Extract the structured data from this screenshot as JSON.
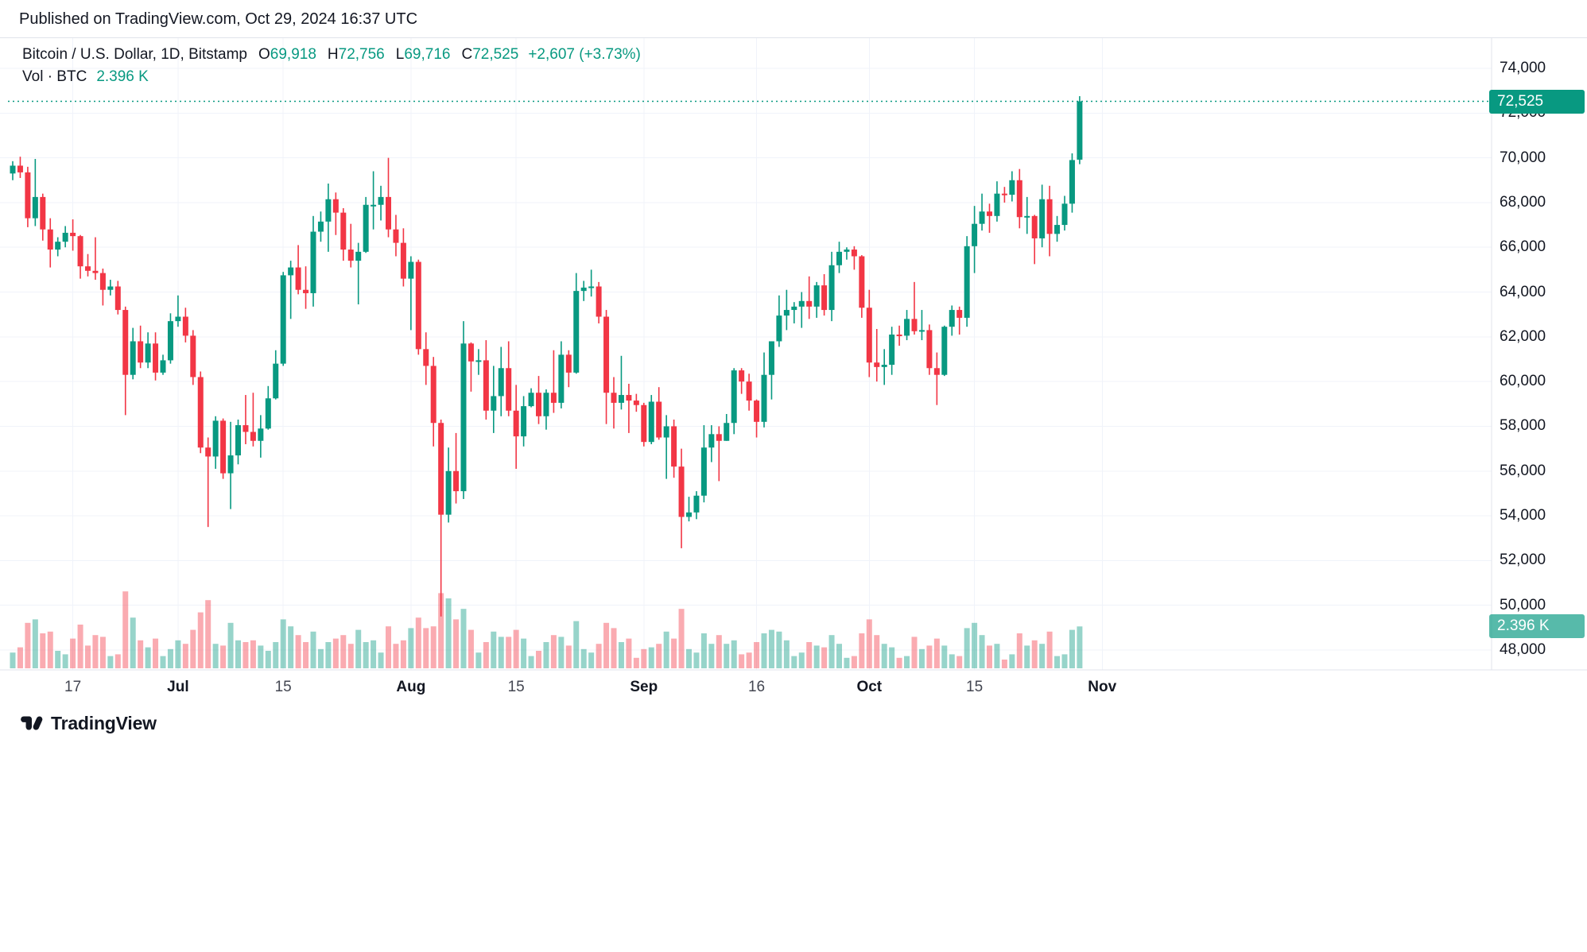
{
  "header": {
    "published_line": "Published on TradingView.com, Oct 29, 2024 16:37 UTC"
  },
  "legend": {
    "symbol": "Bitcoin / U.S. Dollar, 1D, Bitstamp",
    "o_label": "O",
    "o_value": "69,918",
    "h_label": "H",
    "h_value": "72,756",
    "l_label": "L",
    "l_value": "69,716",
    "c_label": "C",
    "c_value": "72,525",
    "change": "+2,607 (+3.73%)",
    "volume_label": "Vol · BTC",
    "volume_value": "2.396 K"
  },
  "price_axis": {
    "last_price_badge": "72,525",
    "volume_badge": "2.396 K"
  },
  "footer": {
    "brand": "TradingView"
  },
  "colors": {
    "up": "#089981",
    "down": "#F23645",
    "vol_up": "rgba(8,153,129,0.42)",
    "vol_down": "rgba(242,54,69,0.42)",
    "accent": "#089981",
    "text": "#131722",
    "grid": "#f0f3fa",
    "axis_line": "#e0e3eb"
  },
  "chart_data": {
    "type": "candlestick",
    "title": "Bitcoin / U.S. Dollar",
    "interval": "1D",
    "exchange": "Bitstamp",
    "volume_unit": "K BTC",
    "current_price": 72525,
    "last": {
      "open": 69918,
      "high": 72756,
      "low": 69716,
      "close": 72525,
      "change_abs": 2607,
      "change_pct": 3.73,
      "volume_k_btc": 2.396
    },
    "y_ticks": [
      {
        "value": 74000,
        "label": "74,000"
      },
      {
        "value": 72000,
        "label": "72,000"
      },
      {
        "value": 70000,
        "label": "70,000"
      },
      {
        "value": 68000,
        "label": "68,000"
      },
      {
        "value": 66000,
        "label": "66,000"
      },
      {
        "value": 64000,
        "label": "64,000"
      },
      {
        "value": 62000,
        "label": "62,000"
      },
      {
        "value": 60000,
        "label": "60,000"
      },
      {
        "value": 58000,
        "label": "58,000"
      },
      {
        "value": 56000,
        "label": "56,000"
      },
      {
        "value": 54000,
        "label": "54,000"
      },
      {
        "value": 52000,
        "label": "52,000"
      },
      {
        "value": 50000,
        "label": "50,000"
      },
      {
        "value": 48000,
        "label": "48,000"
      }
    ],
    "x_ticks": [
      {
        "label": "17",
        "index": 8,
        "bold": false
      },
      {
        "label": "Jul",
        "index": 22,
        "bold": true
      },
      {
        "label": "15",
        "index": 36,
        "bold": false
      },
      {
        "label": "Aug",
        "index": 53,
        "bold": true
      },
      {
        "label": "15",
        "index": 67,
        "bold": false
      },
      {
        "label": "Sep",
        "index": 84,
        "bold": true
      },
      {
        "label": "16",
        "index": 99,
        "bold": false
      },
      {
        "label": "Oct",
        "index": 114,
        "bold": true
      },
      {
        "label": "15",
        "index": 128,
        "bold": false
      },
      {
        "label": "Nov",
        "index": 145,
        "bold": true
      }
    ],
    "candle_fields": [
      "date",
      "open",
      "high",
      "low",
      "close",
      "volume_k_btc"
    ],
    "candles": [
      [
        "2024-06-09",
        69300,
        69850,
        69000,
        69650,
        0.9
      ],
      [
        "2024-06-10",
        69650,
        70050,
        69100,
        69350,
        1.2
      ],
      [
        "2024-06-11",
        69350,
        69600,
        66900,
        67300,
        2.6
      ],
      [
        "2024-06-12",
        67300,
        69950,
        66950,
        68250,
        2.8
      ],
      [
        "2024-06-13",
        68250,
        68400,
        66300,
        66800,
        2.0
      ],
      [
        "2024-06-14",
        66800,
        67300,
        65100,
        65900,
        2.1
      ],
      [
        "2024-06-15",
        65900,
        66450,
        65600,
        66250,
        1.0
      ],
      [
        "2024-06-16",
        66250,
        66950,
        66000,
        66650,
        0.8
      ],
      [
        "2024-06-17",
        66650,
        67250,
        65850,
        66500,
        1.7
      ],
      [
        "2024-06-18",
        66500,
        66550,
        64600,
        65150,
        2.5
      ],
      [
        "2024-06-19",
        65150,
        65700,
        64700,
        64950,
        1.3
      ],
      [
        "2024-06-20",
        64950,
        66450,
        64550,
        64850,
        1.9
      ],
      [
        "2024-06-21",
        64850,
        65050,
        63400,
        64100,
        1.8
      ],
      [
        "2024-06-22",
        64100,
        64550,
        63850,
        64250,
        0.7
      ],
      [
        "2024-06-23",
        64250,
        64500,
        63000,
        63200,
        0.8
      ],
      [
        "2024-06-24",
        63200,
        63350,
        58500,
        60300,
        4.4
      ],
      [
        "2024-06-25",
        60300,
        62400,
        60100,
        61800,
        2.9
      ],
      [
        "2024-06-26",
        61800,
        62500,
        60600,
        60850,
        1.6
      ],
      [
        "2024-06-27",
        60850,
        62200,
        60600,
        61700,
        1.2
      ],
      [
        "2024-06-28",
        61700,
        62200,
        60050,
        60400,
        1.7
      ],
      [
        "2024-06-29",
        60400,
        61200,
        60300,
        60950,
        0.7
      ],
      [
        "2024-06-30",
        60950,
        63050,
        60800,
        62700,
        1.1
      ],
      [
        "2024-07-01",
        62700,
        63850,
        62450,
        62900,
        1.6
      ],
      [
        "2024-07-02",
        62900,
        63300,
        61750,
        62050,
        1.4
      ],
      [
        "2024-07-03",
        62050,
        62300,
        59850,
        60200,
        2.2
      ],
      [
        "2024-07-04",
        60200,
        60450,
        56800,
        57050,
        3.2
      ],
      [
        "2024-07-05",
        57050,
        57500,
        53500,
        56650,
        3.9
      ],
      [
        "2024-07-06",
        56650,
        58450,
        56100,
        58250,
        1.4
      ],
      [
        "2024-07-07",
        58250,
        58350,
        55650,
        55900,
        1.3
      ],
      [
        "2024-07-08",
        55900,
        58200,
        54300,
        56700,
        2.6
      ],
      [
        "2024-07-09",
        56700,
        58300,
        56300,
        58050,
        1.6
      ],
      [
        "2024-07-10",
        58050,
        59400,
        57200,
        57750,
        1.5
      ],
      [
        "2024-07-11",
        57750,
        59500,
        57100,
        57350,
        1.6
      ],
      [
        "2024-07-12",
        57350,
        58500,
        56600,
        57900,
        1.3
      ],
      [
        "2024-07-13",
        57900,
        59800,
        57850,
        59250,
        1.0
      ],
      [
        "2024-07-14",
        59250,
        61400,
        59200,
        60800,
        1.5
      ],
      [
        "2024-07-15",
        60800,
        64900,
        60700,
        64750,
        2.8
      ],
      [
        "2024-07-16",
        64750,
        65400,
        62800,
        65100,
        2.4
      ],
      [
        "2024-07-17",
        65100,
        66100,
        63900,
        64100,
        1.9
      ],
      [
        "2024-07-18",
        64100,
        65150,
        63250,
        63950,
        1.5
      ],
      [
        "2024-07-19",
        63950,
        67400,
        63350,
        66700,
        2.1
      ],
      [
        "2024-07-20",
        66700,
        67600,
        66250,
        67150,
        1.1
      ],
      [
        "2024-07-21",
        67150,
        68850,
        65800,
        68150,
        1.5
      ],
      [
        "2024-07-22",
        68150,
        68450,
        66550,
        67550,
        1.7
      ],
      [
        "2024-07-23",
        67550,
        67750,
        65400,
        65900,
        1.9
      ],
      [
        "2024-07-24",
        65900,
        67050,
        65100,
        65400,
        1.4
      ],
      [
        "2024-07-25",
        65400,
        66200,
        63450,
        65800,
        2.2
      ],
      [
        "2024-07-26",
        65800,
        68250,
        65750,
        67900,
        1.5
      ],
      [
        "2024-07-27",
        67900,
        69400,
        66800,
        67900,
        1.6
      ],
      [
        "2024-07-28",
        67900,
        68750,
        67200,
        68250,
        0.9
      ],
      [
        "2024-07-29",
        68250,
        70000,
        66450,
        66800,
        2.4
      ],
      [
        "2024-07-30",
        66800,
        67450,
        65600,
        66200,
        1.4
      ],
      [
        "2024-07-31",
        66200,
        66850,
        64250,
        64600,
        1.6
      ],
      [
        "2024-08-01",
        64600,
        65600,
        62300,
        65350,
        2.3
      ],
      [
        "2024-08-02",
        65350,
        65450,
        61200,
        61450,
        2.9
      ],
      [
        "2024-08-03",
        61450,
        62200,
        59850,
        60700,
        2.3
      ],
      [
        "2024-08-04",
        60700,
        61100,
        57100,
        58150,
        2.4
      ],
      [
        "2024-08-05",
        58150,
        58300,
        49500,
        54050,
        4.3
      ],
      [
        "2024-08-06",
        54050,
        57050,
        53700,
        56000,
        4.0
      ],
      [
        "2024-08-07",
        56000,
        57700,
        54550,
        55100,
        2.8
      ],
      [
        "2024-08-08",
        55100,
        62700,
        54750,
        61700,
        3.4
      ],
      [
        "2024-08-09",
        61700,
        61750,
        59550,
        60900,
        2.2
      ],
      [
        "2024-08-10",
        60900,
        61450,
        60300,
        60950,
        0.9
      ],
      [
        "2024-08-11",
        60950,
        61850,
        58300,
        58700,
        1.5
      ],
      [
        "2024-08-12",
        58700,
        60700,
        57700,
        59350,
        2.1
      ],
      [
        "2024-08-13",
        59350,
        61550,
        58450,
        60600,
        1.8
      ],
      [
        "2024-08-14",
        60600,
        61800,
        58450,
        58700,
        1.8
      ],
      [
        "2024-08-15",
        58700,
        59850,
        56100,
        57550,
        2.2
      ],
      [
        "2024-08-16",
        57550,
        59350,
        57100,
        58900,
        1.7
      ],
      [
        "2024-08-17",
        58900,
        59700,
        58850,
        59500,
        0.7
      ],
      [
        "2024-08-18",
        59500,
        60250,
        58100,
        58450,
        1.0
      ],
      [
        "2024-08-19",
        58450,
        59650,
        57850,
        59500,
        1.5
      ],
      [
        "2024-08-20",
        59500,
        61400,
        58600,
        59050,
        1.9
      ],
      [
        "2024-08-21",
        59050,
        61800,
        58800,
        61200,
        1.8
      ],
      [
        "2024-08-22",
        61200,
        61400,
        59750,
        60400,
        1.3
      ],
      [
        "2024-08-23",
        60400,
        64850,
        60350,
        64050,
        2.7
      ],
      [
        "2024-08-24",
        64050,
        64500,
        63600,
        64200,
        1.1
      ],
      [
        "2024-08-25",
        64200,
        65000,
        63800,
        64250,
        0.9
      ],
      [
        "2024-08-26",
        64250,
        64450,
        62600,
        62900,
        1.4
      ],
      [
        "2024-08-27",
        62900,
        63200,
        58100,
        59500,
        2.6
      ],
      [
        "2024-08-28",
        59500,
        60200,
        57900,
        59050,
        2.3
      ],
      [
        "2024-08-29",
        59050,
        61150,
        58750,
        59400,
        1.5
      ],
      [
        "2024-08-30",
        59400,
        59900,
        57700,
        59150,
        1.7
      ],
      [
        "2024-08-31",
        59150,
        59450,
        58650,
        58950,
        0.6
      ],
      [
        "2024-09-01",
        58950,
        59050,
        57100,
        57300,
        1.1
      ],
      [
        "2024-09-02",
        57300,
        59400,
        57200,
        59100,
        1.2
      ],
      [
        "2024-09-03",
        59100,
        59750,
        57400,
        57500,
        1.4
      ],
      [
        "2024-09-04",
        57500,
        58500,
        55650,
        58000,
        2.1
      ],
      [
        "2024-09-05",
        58000,
        58300,
        55700,
        56200,
        1.7
      ],
      [
        "2024-09-06",
        56200,
        57000,
        52550,
        53950,
        3.4
      ],
      [
        "2024-09-07",
        53950,
        54850,
        53750,
        54150,
        1.1
      ],
      [
        "2024-09-08",
        54150,
        55100,
        53850,
        54900,
        0.9
      ],
      [
        "2024-09-09",
        54900,
        58050,
        54600,
        57050,
        2.0
      ],
      [
        "2024-09-10",
        57050,
        58050,
        56400,
        57650,
        1.4
      ],
      [
        "2024-09-11",
        57650,
        58000,
        55550,
        57350,
        1.9
      ],
      [
        "2024-09-12",
        57350,
        58550,
        57350,
        58150,
        1.4
      ],
      [
        "2024-09-13",
        58150,
        60600,
        57650,
        60500,
        1.6
      ],
      [
        "2024-09-14",
        60500,
        60600,
        59450,
        60000,
        0.8
      ],
      [
        "2024-09-15",
        60000,
        60350,
        58700,
        59150,
        0.9
      ],
      [
        "2024-09-16",
        59150,
        59200,
        57500,
        58200,
        1.5
      ],
      [
        "2024-09-17",
        58200,
        61300,
        57950,
        60300,
        2.0
      ],
      [
        "2024-09-18",
        60300,
        61800,
        59200,
        61800,
        2.2
      ],
      [
        "2024-09-19",
        61800,
        63850,
        61550,
        62950,
        2.1
      ],
      [
        "2024-09-20",
        62950,
        64100,
        62300,
        63200,
        1.6
      ],
      [
        "2024-09-21",
        63200,
        63550,
        62600,
        63350,
        0.7
      ],
      [
        "2024-09-22",
        63350,
        64000,
        62400,
        63600,
        0.9
      ],
      [
        "2024-09-23",
        63600,
        64700,
        62800,
        63350,
        1.5
      ],
      [
        "2024-09-24",
        63350,
        64450,
        62850,
        64300,
        1.3
      ],
      [
        "2024-09-25",
        64300,
        64800,
        62950,
        63200,
        1.2
      ],
      [
        "2024-09-26",
        63200,
        65800,
        62700,
        65200,
        1.9
      ],
      [
        "2024-09-27",
        65200,
        66250,
        64850,
        65800,
        1.4
      ],
      [
        "2024-09-28",
        65800,
        66000,
        65450,
        65900,
        0.6
      ],
      [
        "2024-09-29",
        65900,
        66050,
        65000,
        65600,
        0.7
      ],
      [
        "2024-09-30",
        65600,
        65650,
        62850,
        63300,
        2.0
      ],
      [
        "2024-10-01",
        63300,
        64100,
        60200,
        60850,
        2.8
      ],
      [
        "2024-10-02",
        60850,
        62350,
        60000,
        60650,
        1.9
      ],
      [
        "2024-10-03",
        60650,
        61450,
        59850,
        60750,
        1.4
      ],
      [
        "2024-10-04",
        60750,
        62450,
        60300,
        62100,
        1.2
      ],
      [
        "2024-10-05",
        62100,
        62500,
        61600,
        62050,
        0.6
      ],
      [
        "2024-10-06",
        62050,
        63200,
        61850,
        62800,
        0.7
      ],
      [
        "2024-10-07",
        62800,
        64450,
        62100,
        62250,
        1.8
      ],
      [
        "2024-10-08",
        62250,
        63200,
        61850,
        62300,
        1.1
      ],
      [
        "2024-10-09",
        62300,
        62550,
        60300,
        60600,
        1.3
      ],
      [
        "2024-10-10",
        60600,
        61300,
        58950,
        60300,
        1.7
      ],
      [
        "2024-10-11",
        60300,
        62500,
        60250,
        62450,
        1.3
      ],
      [
        "2024-10-12",
        62450,
        63400,
        62050,
        63200,
        0.8
      ],
      [
        "2024-10-13",
        63200,
        63350,
        62100,
        62850,
        0.7
      ],
      [
        "2024-10-14",
        62850,
        66500,
        62450,
        66050,
        2.3
      ],
      [
        "2024-10-15",
        66050,
        67850,
        64850,
        67050,
        2.6
      ],
      [
        "2024-10-16",
        67050,
        68400,
        66750,
        67600,
        1.9
      ],
      [
        "2024-10-17",
        67600,
        67950,
        66650,
        67400,
        1.3
      ],
      [
        "2024-10-18",
        67400,
        68950,
        67150,
        68400,
        1.4
      ],
      [
        "2024-10-19",
        68400,
        68700,
        68000,
        68350,
        0.5
      ],
      [
        "2024-10-20",
        68350,
        69400,
        68050,
        69000,
        0.8
      ],
      [
        "2024-10-21",
        69000,
        69500,
        66850,
        67350,
        2.0
      ],
      [
        "2024-10-22",
        67350,
        68250,
        66600,
        67400,
        1.3
      ],
      [
        "2024-10-23",
        67400,
        67450,
        65250,
        66400,
        1.6
      ],
      [
        "2024-10-24",
        66400,
        68800,
        66000,
        68150,
        1.4
      ],
      [
        "2024-10-25",
        68150,
        68750,
        65600,
        66600,
        2.1
      ],
      [
        "2024-10-26",
        66600,
        67400,
        66250,
        67000,
        0.7
      ],
      [
        "2024-10-27",
        67000,
        68300,
        66750,
        67950,
        0.8
      ],
      [
        "2024-10-28",
        67950,
        70200,
        67550,
        69900,
        2.2
      ],
      [
        "2024-10-29",
        69918,
        72756,
        69716,
        72525,
        2.396
      ]
    ]
  }
}
